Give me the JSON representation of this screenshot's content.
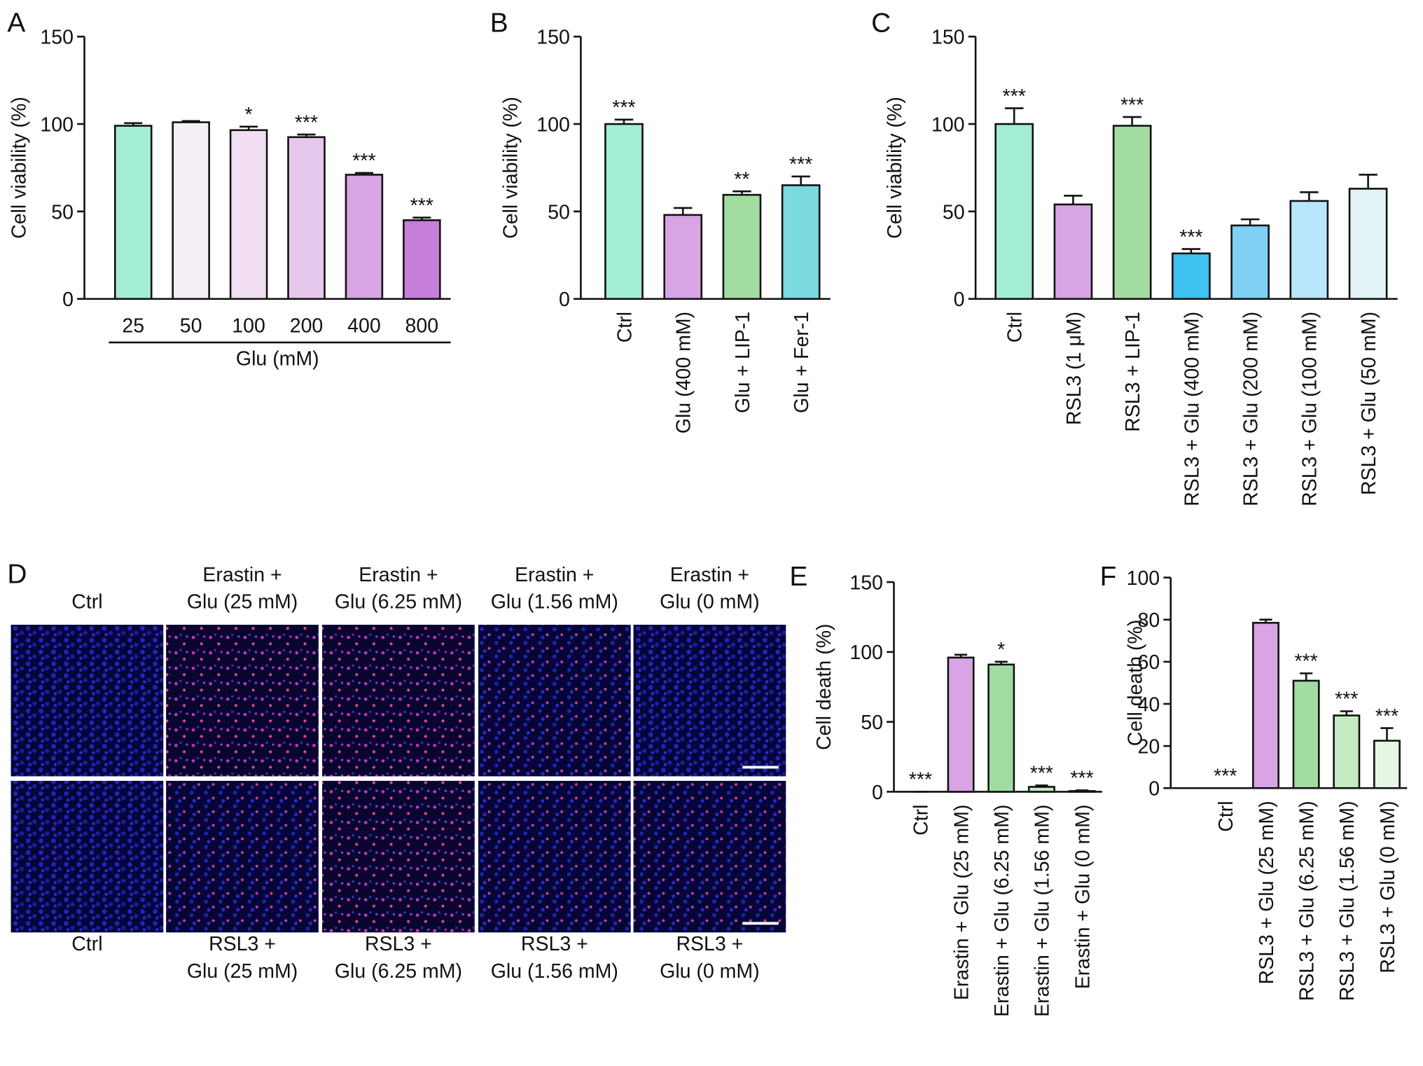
{
  "chart_data": [
    {
      "type": "bar",
      "panel": "A",
      "y_label": "Cell viability (%)",
      "x_label": "Glu (mM)",
      "categories": [
        "25",
        "50",
        "100",
        "200",
        "400",
        "800"
      ],
      "values": [
        99,
        101,
        96.5,
        92.5,
        71,
        45
      ],
      "errors": [
        1.5,
        0.7,
        2,
        1.5,
        1,
        1.5
      ],
      "annotations": [
        null,
        null,
        "*",
        "***",
        "***",
        "***"
      ],
      "colors": [
        "#a3ecd6",
        "#f5eef7",
        "#f1def3",
        "#e7c8ed",
        "#d8a4e4",
        "#c57ed9"
      ],
      "ylim": [
        0,
        150
      ],
      "yticks": [
        0,
        50,
        100,
        150
      ]
    },
    {
      "type": "bar",
      "panel": "B",
      "y_label": "Cell viability (%)",
      "categories": [
        "Ctrl",
        "Glu (400 mM)",
        "Glu + LIP-1",
        "Glu + Fer-1"
      ],
      "values": [
        100,
        48,
        59.5,
        65
      ],
      "errors": [
        2.5,
        4,
        2,
        5
      ],
      "annotations": [
        "***",
        null,
        "**",
        "***"
      ],
      "colors": [
        "#a3ecd6",
        "#d8a4e4",
        "#a2dca0",
        "#7bdae0"
      ],
      "ylim": [
        0,
        150
      ],
      "yticks": [
        0,
        50,
        100,
        150
      ]
    },
    {
      "type": "bar",
      "panel": "C",
      "y_label": "Cell viability (%)",
      "categories": [
        "Ctrl",
        "RSL3 (1 μM)",
        "RSL3 + LIP-1",
        "RSL3 + Glu (400 mM)",
        "RSL3 + Glu (200 mM)",
        "RSL3 + Glu (100 mM)",
        "RSL3 + Glu (50 mM)"
      ],
      "values": [
        100,
        54,
        99,
        26,
        42,
        56,
        63
      ],
      "errors": [
        9,
        5,
        5,
        2.5,
        3.5,
        5,
        8
      ],
      "annotations": [
        "***",
        null,
        "***",
        "***",
        null,
        null,
        null
      ],
      "colors": [
        "#a3ecd6",
        "#d8a4e4",
        "#a2dca0",
        "#3ec2ef",
        "#7fd0f4",
        "#b8e6fb",
        "#e2f3f5"
      ],
      "ylim": [
        0,
        150
      ],
      "yticks": [
        0,
        50,
        100,
        150
      ]
    },
    {
      "type": "bar",
      "panel": "E",
      "y_label": "Cell death (%)",
      "categories": [
        "Ctrl",
        "Erastin + Glu (25 mM)",
        "Erastin + Glu (6.25 mM)",
        "Erastin + Glu (1.56 mM)",
        "Erastin + Glu (0 mM)"
      ],
      "values": [
        0,
        96,
        91,
        3.5,
        0.5
      ],
      "errors": [
        0,
        2,
        2,
        1,
        0.5
      ],
      "annotations": [
        "***",
        null,
        "*",
        "***",
        "***"
      ],
      "colors": [
        "#a3ecd6",
        "#d8a4e4",
        "#a2dca0",
        "#c5ebc2",
        "#e6f5e4"
      ],
      "ylim": [
        0,
        150
      ],
      "yticks": [
        0,
        50,
        100,
        150
      ]
    },
    {
      "type": "bar",
      "panel": "F",
      "y_label": "Cell death (%)",
      "categories": [
        "Ctrl",
        "RSL3 + Glu (25 mM)",
        "RSL3 + Glu (6.25 mM)",
        "RSL3 + Glu (1.56 mM)",
        "RSL3 + Glu (0 mM)"
      ],
      "values": [
        0,
        78.5,
        51,
        34.5,
        22.5
      ],
      "errors": [
        0,
        1.5,
        3.5,
        2,
        6
      ],
      "annotations": [
        "***",
        null,
        "***",
        "***",
        "***"
      ],
      "colors": [
        "#a3ecd6",
        "#d8a4e4",
        "#a2dca0",
        "#c5ebc2",
        "#e6f5e4"
      ],
      "ylim": [
        0,
        100
      ],
      "yticks": [
        0,
        20,
        40,
        60,
        80,
        100
      ]
    }
  ],
  "panel_d": {
    "panel": "D",
    "top_labels": [
      [
        "Ctrl"
      ],
      [
        "Erastin +",
        "Glu (25 mM)"
      ],
      [
        "Erastin +",
        "Glu (6.25 mM)"
      ],
      [
        "Erastin +",
        "Glu (1.56 mM)"
      ],
      [
        "Erastin +",
        "Glu (0 mM)"
      ]
    ],
    "bottom_labels": [
      [
        "Ctrl"
      ],
      [
        "RSL3 +",
        "Glu (25 mM)"
      ],
      [
        "RSL3 +",
        "Glu (6.25 mM)"
      ],
      [
        "RSL3 +",
        "Glu (1.56 mM)"
      ],
      [
        "RSL3 +",
        "Glu (0 mM)"
      ]
    ]
  }
}
